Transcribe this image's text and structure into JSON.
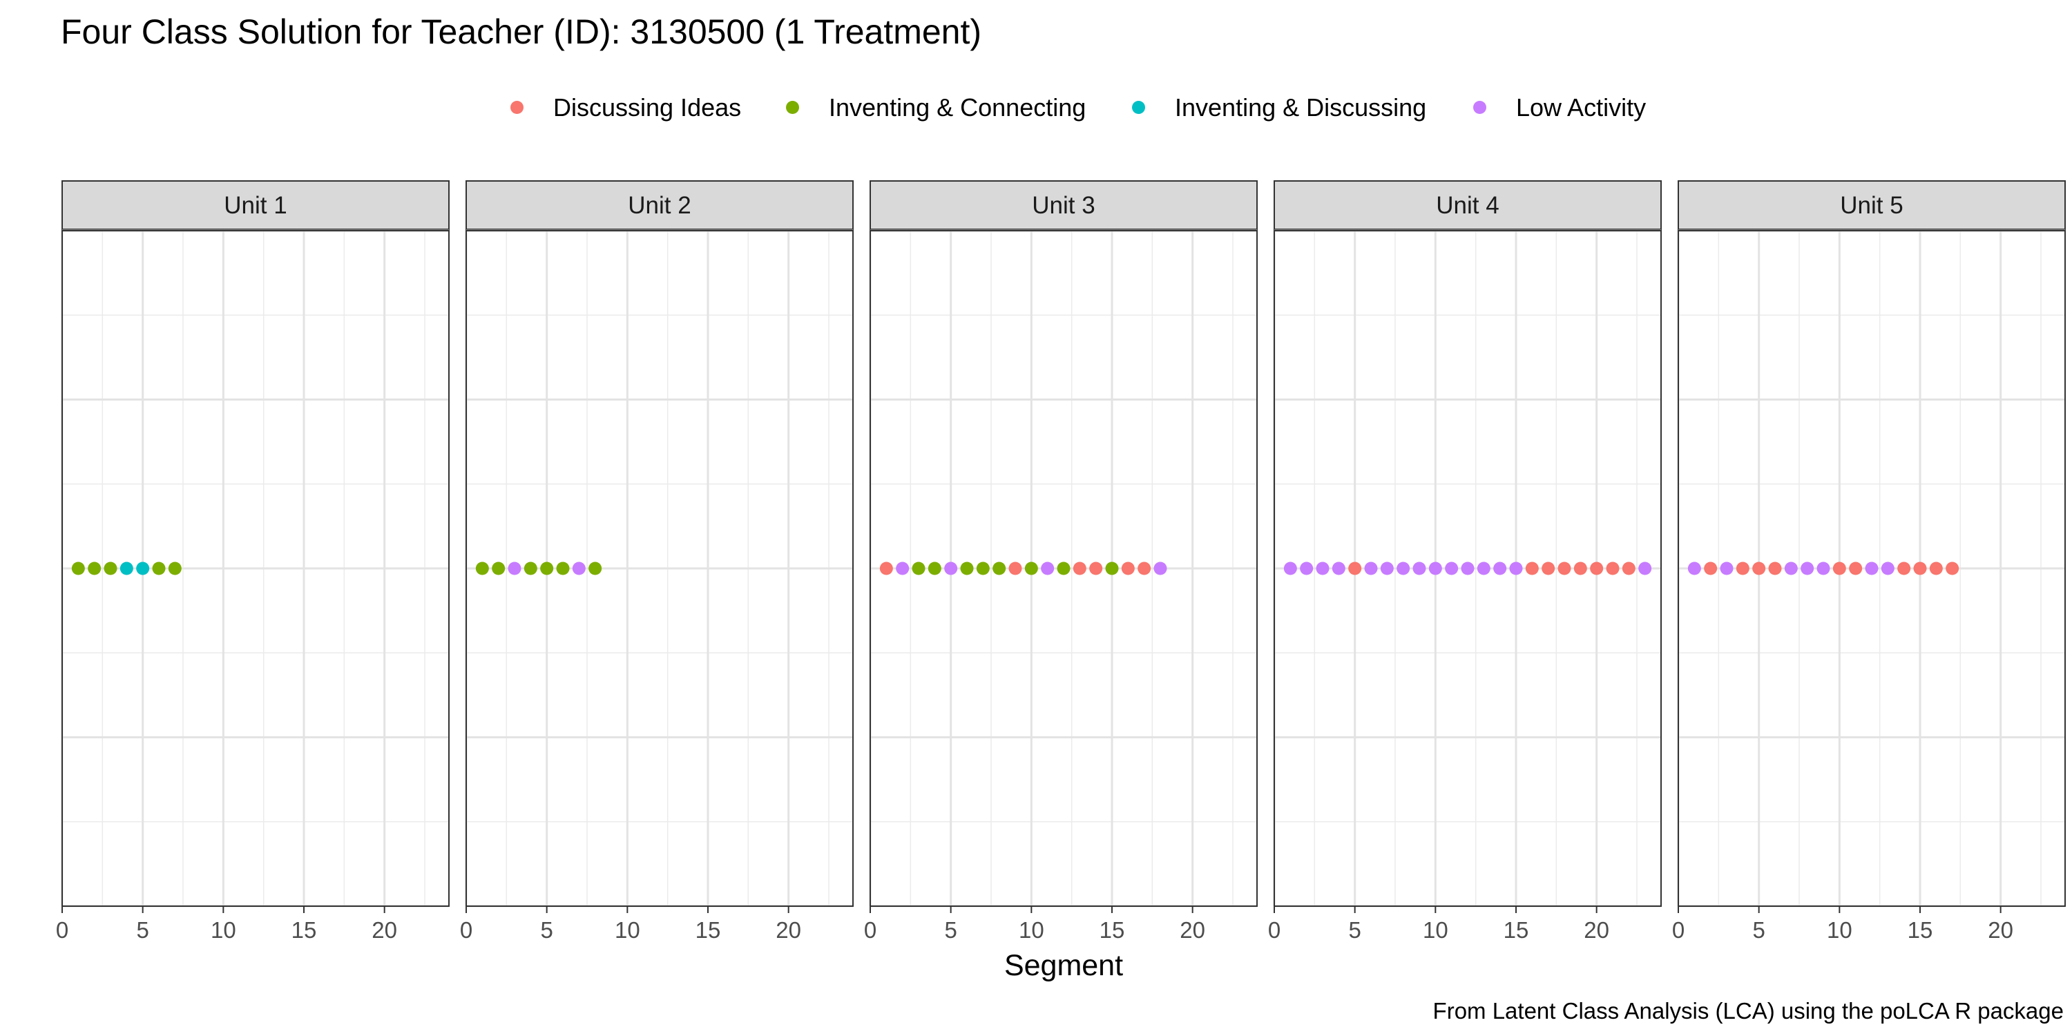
{
  "title": "Four Class Solution for Teacher (ID): 3130500 (1 Treatment)",
  "caption": "From Latent Class Analysis (LCA) using the poLCA R package",
  "chart_data": {
    "type": "scatter",
    "xlabel": "Segment",
    "ylabel": "",
    "xlim": [
      0,
      24
    ],
    "xticks": [
      0,
      5,
      10,
      15,
      20
    ],
    "grid": true,
    "legend_position": "top",
    "classes": [
      {
        "name": "Discussing Ideas",
        "color": "#F8766D"
      },
      {
        "name": "Inventing & Connecting",
        "color": "#7CAE00"
      },
      {
        "name": "Inventing & Discussing",
        "color": "#00BFC4"
      },
      {
        "name": "Low Activity",
        "color": "#C77CFF"
      }
    ],
    "panels": [
      {
        "label": "Unit 1",
        "segments": [
          1,
          2,
          3,
          4,
          5,
          6,
          7
        ],
        "classes": [
          "Inventing & Connecting",
          "Inventing & Connecting",
          "Inventing & Connecting",
          "Inventing & Discussing",
          "Inventing & Discussing",
          "Inventing & Connecting",
          "Inventing & Connecting"
        ]
      },
      {
        "label": "Unit 2",
        "segments": [
          1,
          2,
          3,
          4,
          5,
          6,
          7,
          8
        ],
        "classes": [
          "Inventing & Connecting",
          "Inventing & Connecting",
          "Low Activity",
          "Inventing & Connecting",
          "Inventing & Connecting",
          "Inventing & Connecting",
          "Low Activity",
          "Inventing & Connecting"
        ]
      },
      {
        "label": "Unit 3",
        "segments": [
          1,
          2,
          3,
          4,
          5,
          6,
          7,
          8,
          9,
          10,
          11,
          12,
          13,
          14,
          15,
          16,
          17,
          18
        ],
        "classes": [
          "Discussing Ideas",
          "Low Activity",
          "Inventing & Connecting",
          "Inventing & Connecting",
          "Low Activity",
          "Inventing & Connecting",
          "Inventing & Connecting",
          "Inventing & Connecting",
          "Discussing Ideas",
          "Inventing & Connecting",
          "Low Activity",
          "Inventing & Connecting",
          "Discussing Ideas",
          "Discussing Ideas",
          "Inventing & Connecting",
          "Discussing Ideas",
          "Discussing Ideas",
          "Low Activity"
        ]
      },
      {
        "label": "Unit 4",
        "segments": [
          1,
          2,
          3,
          4,
          5,
          6,
          7,
          8,
          9,
          10,
          11,
          12,
          13,
          14,
          15,
          16,
          17,
          18,
          19,
          20,
          21,
          22,
          23
        ],
        "classes": [
          "Low Activity",
          "Low Activity",
          "Low Activity",
          "Low Activity",
          "Discussing Ideas",
          "Low Activity",
          "Low Activity",
          "Low Activity",
          "Low Activity",
          "Low Activity",
          "Low Activity",
          "Low Activity",
          "Low Activity",
          "Low Activity",
          "Low Activity",
          "Discussing Ideas",
          "Discussing Ideas",
          "Discussing Ideas",
          "Discussing Ideas",
          "Discussing Ideas",
          "Discussing Ideas",
          "Discussing Ideas",
          "Low Activity"
        ]
      },
      {
        "label": "Unit 5",
        "segments": [
          1,
          2,
          3,
          4,
          5,
          6,
          7,
          8,
          9,
          10,
          11,
          12,
          13,
          14,
          15,
          16,
          17
        ],
        "classes": [
          "Low Activity",
          "Discussing Ideas",
          "Low Activity",
          "Discussing Ideas",
          "Discussing Ideas",
          "Discussing Ideas",
          "Low Activity",
          "Low Activity",
          "Low Activity",
          "Discussing Ideas",
          "Discussing Ideas",
          "Low Activity",
          "Low Activity",
          "Discussing Ideas",
          "Discussing Ideas",
          "Discussing Ideas",
          "Discussing Ideas"
        ]
      }
    ]
  }
}
